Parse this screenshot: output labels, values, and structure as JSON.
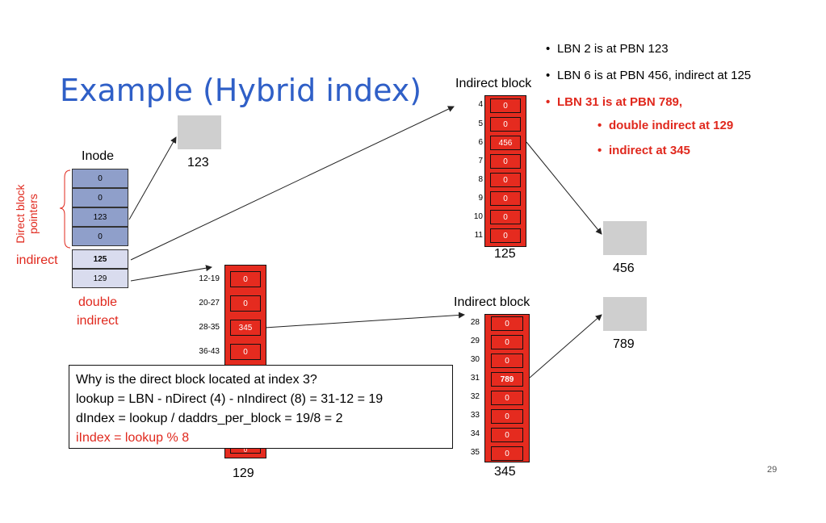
{
  "title": "Example (Hybrid index)",
  "bullets": [
    {
      "text": "LBN 2 is at PBN 123",
      "color": "black",
      "level": 0
    },
    {
      "text": "LBN 6 is at PBN 456, indirect at 125",
      "color": "black",
      "level": 0
    },
    {
      "text": "LBN 31 is at PBN 789,",
      "color": "red",
      "level": 0
    },
    {
      "text": "double indirect at 129",
      "color": "red",
      "level": 1
    },
    {
      "text": "indirect at 345",
      "color": "red",
      "level": 1
    }
  ],
  "inode": {
    "label": "Inode",
    "cells": [
      "0",
      "0",
      "123",
      "0",
      "125",
      "129"
    ],
    "direct_label_line1": "Direct block",
    "direct_label_line2": "pointers",
    "indirect_label": "indirect",
    "double_label_line1": "double",
    "double_label_line2": "indirect"
  },
  "data_blocks": [
    {
      "label": "123"
    },
    {
      "label": "456"
    },
    {
      "label": "789"
    }
  ],
  "indirect_block_125": {
    "heading": "Indirect block",
    "label": "125",
    "indices": [
      "4",
      "5",
      "6",
      "7",
      "8",
      "9",
      "10",
      "11"
    ],
    "values": [
      "0",
      "0",
      "456",
      "0",
      "0",
      "0",
      "0",
      "0"
    ]
  },
  "double_block_129": {
    "label": "129",
    "indices": [
      "12-19",
      "20-27",
      "28-35",
      "36-43"
    ],
    "values": [
      "0",
      "0",
      "345",
      "0"
    ],
    "partial_bottom": "0"
  },
  "indirect_block_345": {
    "heading": "Indirect block",
    "label": "345",
    "indices": [
      "28",
      "29",
      "30",
      "31",
      "32",
      "33",
      "34",
      "35"
    ],
    "values": [
      "0",
      "0",
      "0",
      "789",
      "0",
      "0",
      "0",
      "0"
    ]
  },
  "note": {
    "line1": "Why is the direct block located at index 3?",
    "line2": "lookup = LBN - nDirect (4) - nIndirect (8) = 31-12 = 19",
    "line3": "dIndex = lookup / daddrs_per_block = 19/8 = 2",
    "line4": "iIndex = lookup % 8"
  },
  "page_number": "29",
  "colors": {
    "title": "#2f5fc7",
    "red": "#e0281d",
    "cell_red": "#e52b1f",
    "inode_blue": "#8f9fca",
    "gray": "#cfcfcf"
  }
}
